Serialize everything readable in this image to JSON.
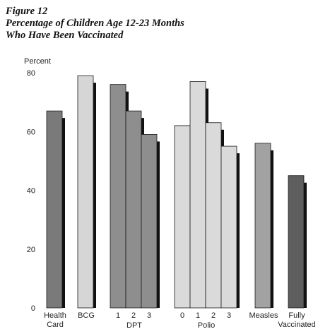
{
  "figure": {
    "number": "Figure 12",
    "title_line1": "Percentage of Children Age 12-23 Months",
    "title_line2": "Who Have Been Vaccinated"
  },
  "chart_data": {
    "type": "bar",
    "title": "Percentage of Children Age 12-23 Months Who Have Been Vaccinated",
    "ylabel": "Percent",
    "ylim": [
      0,
      80
    ],
    "yticks": [
      0,
      20,
      40,
      60,
      80
    ],
    "grid": false,
    "groups": [
      {
        "label": "Health\nCard",
        "bars": [
          {
            "label": "",
            "value": 67,
            "color": "#7a7a7a"
          }
        ]
      },
      {
        "label": "BCG",
        "bars": [
          {
            "label": "",
            "value": 79,
            "color": "#d6d6d6"
          }
        ]
      },
      {
        "label": "DPT",
        "bars": [
          {
            "label": "1",
            "value": 76,
            "color": "#8e8e8e"
          },
          {
            "label": "2",
            "value": 67,
            "color": "#8e8e8e"
          },
          {
            "label": "3",
            "value": 59,
            "color": "#8e8e8e"
          }
        ]
      },
      {
        "label": "Polio",
        "bars": [
          {
            "label": "0",
            "value": 62,
            "color": "#dadada"
          },
          {
            "label": "1",
            "value": 77,
            "color": "#dadada"
          },
          {
            "label": "2",
            "value": 63,
            "color": "#dadada"
          },
          {
            "label": "3",
            "value": 55,
            "color": "#dadada"
          }
        ]
      },
      {
        "label": "Measles",
        "bars": [
          {
            "label": "",
            "value": 56,
            "color": "#a2a2a2"
          }
        ]
      },
      {
        "label": "Fully\nVaccinated",
        "bars": [
          {
            "label": "",
            "value": 45,
            "color": "#5e5e5e"
          }
        ]
      }
    ]
  }
}
